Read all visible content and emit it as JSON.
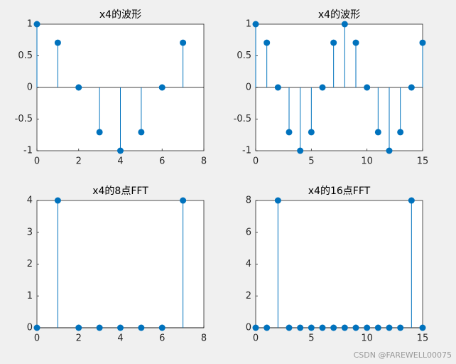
{
  "chart_data": [
    {
      "type": "stem",
      "title": "x4的波形",
      "color": "#0072bd",
      "x": [
        0,
        1,
        2,
        3,
        4,
        5,
        6,
        7
      ],
      "values": [
        1,
        0.707,
        0,
        -0.707,
        -1,
        -0.707,
        0,
        0.707
      ],
      "xlim": [
        0,
        8
      ],
      "xticks": [
        0,
        2,
        4,
        6,
        8
      ],
      "ylim": [
        -1,
        1
      ],
      "yticks": [
        -1,
        -0.5,
        0,
        0.5,
        1
      ]
    },
    {
      "type": "stem",
      "title": "x4的波形",
      "color": "#0072bd",
      "x": [
        0,
        1,
        2,
        3,
        4,
        5,
        6,
        7,
        8,
        9,
        10,
        11,
        12,
        13,
        14,
        15
      ],
      "values": [
        1,
        0.707,
        0,
        -0.707,
        -1,
        -0.707,
        0,
        0.707,
        1,
        0.707,
        0,
        -0.707,
        -1,
        -0.707,
        0,
        0.707
      ],
      "xlim": [
        0,
        15
      ],
      "xticks": [
        0,
        5,
        10,
        15
      ],
      "ylim": [
        -1,
        1
      ],
      "yticks": [
        -1,
        -0.5,
        0,
        0.5,
        1
      ]
    },
    {
      "type": "stem",
      "title": "x4的8点FFT",
      "color": "#0072bd",
      "x": [
        0,
        1,
        2,
        3,
        4,
        5,
        6,
        7
      ],
      "values": [
        0,
        4,
        0,
        0,
        0,
        0,
        0,
        4
      ],
      "xlim": [
        0,
        8
      ],
      "xticks": [
        0,
        2,
        4,
        6,
        8
      ],
      "ylim": [
        0,
        4
      ],
      "yticks": [
        0,
        1,
        2,
        3,
        4
      ]
    },
    {
      "type": "stem",
      "title": "x4的16点FFT",
      "color": "#0072bd",
      "x": [
        0,
        1,
        2,
        3,
        4,
        5,
        6,
        7,
        8,
        9,
        10,
        11,
        12,
        13,
        14,
        15
      ],
      "values": [
        0,
        0,
        8,
        0,
        0,
        0,
        0,
        0,
        0,
        0,
        0,
        0,
        0,
        0,
        8,
        0
      ],
      "xlim": [
        0,
        15
      ],
      "xticks": [
        0,
        5,
        10,
        15
      ],
      "ylim": [
        0,
        8
      ],
      "yticks": [
        0,
        2,
        4,
        6,
        8
      ]
    }
  ],
  "watermark": "CSDN @FAREWELL00075"
}
